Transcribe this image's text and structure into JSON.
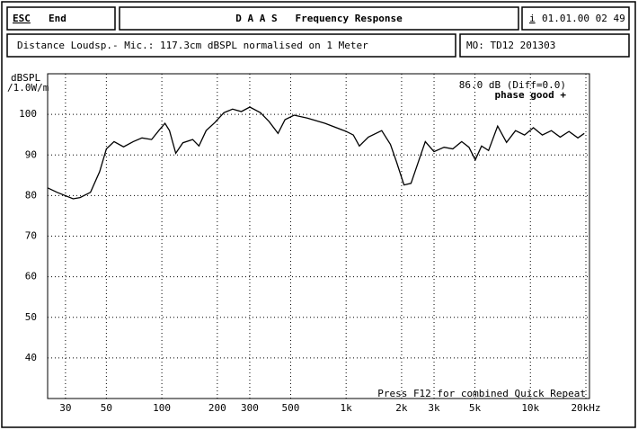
{
  "header": {
    "esc": "ESC",
    "end": "End",
    "title": "D A A S   Frequency Response",
    "info": "i",
    "datetime": "01.01.00 02 49",
    "measurement": "Distance Loudsp.- Mic.: 117.3cm dBSPL normalised on 1 Meter",
    "model": "MO: TD12 201303"
  },
  "chart_data": {
    "type": "line",
    "xscale": "log",
    "grid": true,
    "ylabel": "dBSPL",
    "ylabel_unit": "/1.0W/m",
    "annotations": [
      "86.0 dB (Diff=0.0)",
      "phase good +"
    ],
    "footer": "Press F12 for combined Quick Repeat",
    "xlim": [
      24,
      20000
    ],
    "ylim": [
      30,
      110
    ],
    "xticks": [
      30,
      50,
      100,
      200,
      300,
      500,
      {
        "value": 1000,
        "label": "1k"
      },
      {
        "value": 2000,
        "label": "2k"
      },
      {
        "value": 3000,
        "label": "3k"
      },
      {
        "value": 5000,
        "label": "5k"
      },
      {
        "value": 10000,
        "label": "10k"
      },
      {
        "value": 20000,
        "label": "20kHz"
      }
    ],
    "yticks": [
      40,
      50,
      60,
      70,
      80,
      90,
      100
    ],
    "color": "#000000",
    "x": [
      24,
      27,
      33,
      36,
      41,
      46,
      50,
      55,
      62,
      70,
      78,
      88,
      97,
      104,
      110,
      119,
      130,
      147,
      159,
      174,
      194,
      217,
      242,
      270,
      300,
      343,
      382,
      427,
      466,
      522,
      615,
      769,
      1000,
      1094,
      1180,
      1320,
      1560,
      1740,
      1880,
      2060,
      2250,
      2460,
      2690,
      3000,
      3400,
      3790,
      4240,
      4640,
      5020,
      5430,
      5930,
      6640,
      7420,
      8300,
      9290,
      10380,
      11600,
      13000,
      14500,
      16200,
      18100,
      19600
    ],
    "values": [
      81.9,
      80.8,
      79.2,
      79.5,
      80.8,
      85.9,
      91.5,
      93.3,
      92,
      93.3,
      94.2,
      93.8,
      96.2,
      97.8,
      96,
      90.4,
      93,
      93.8,
      92.2,
      96,
      98,
      100.4,
      101.3,
      100.7,
      101.8,
      100.4,
      98.2,
      95.3,
      98.7,
      99.8,
      99.1,
      97.8,
      95.8,
      94.9,
      92.2,
      94.4,
      96,
      92.6,
      88.2,
      82.6,
      83,
      88.2,
      93.3,
      90.8,
      91.9,
      91.5,
      93.3,
      91.9,
      88.8,
      92.2,
      91.1,
      97.1,
      93.1,
      96,
      94.9,
      96.7,
      94.9,
      96,
      94.4,
      95.8,
      94.2,
      95.3
    ]
  }
}
